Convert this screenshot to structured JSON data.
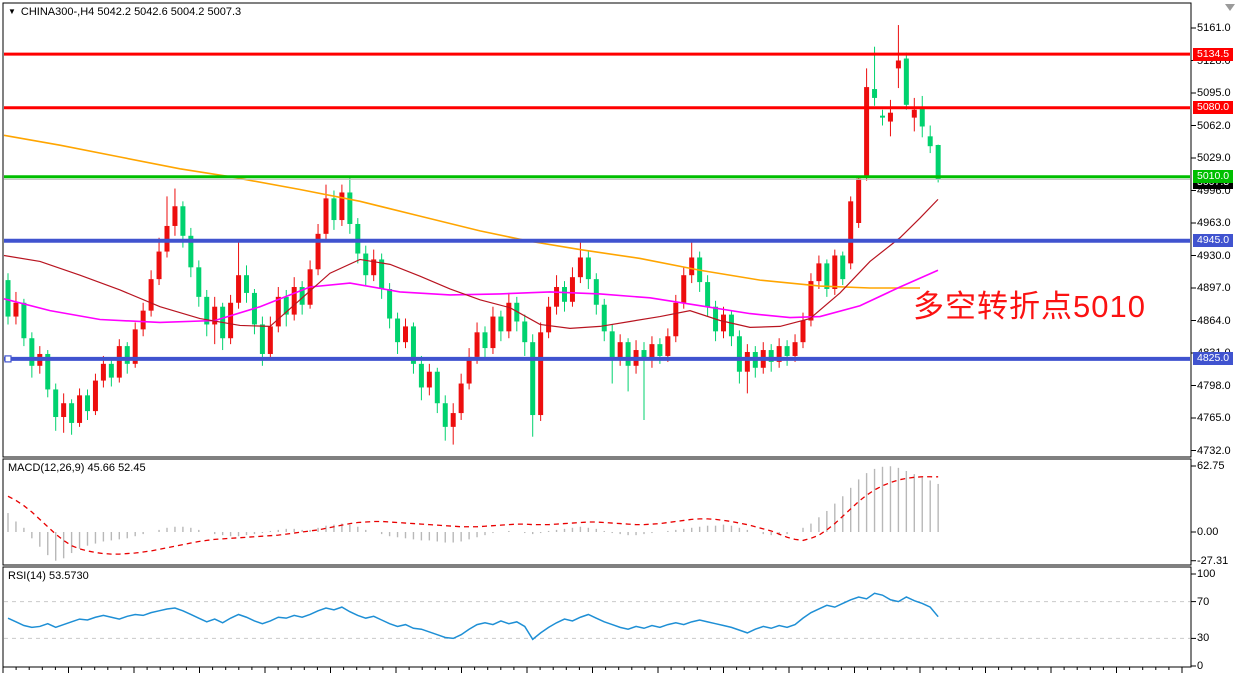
{
  "header": {
    "collapse_icon": "▼",
    "symbol": "CHINA300-,H4",
    "open": "5042.2",
    "high": "5042.6",
    "low": "5004.2",
    "close": "5007.3"
  },
  "macd_panel": {
    "label": "MACD(12,26,9)",
    "values": "45.66 52.45",
    "ticks": [
      {
        "v": 62.75,
        "label": "62.75"
      },
      {
        "v": 0,
        "label": "0.00"
      },
      {
        "v": -27.31,
        "label": "-27.31"
      }
    ]
  },
  "rsi_panel": {
    "label": "RSI(14)",
    "value": "53.5730",
    "ticks": [
      {
        "v": 100,
        "label": "100"
      },
      {
        "v": 70,
        "label": "70"
      },
      {
        "v": 30,
        "label": "30"
      },
      {
        "v": 0,
        "label": "0"
      }
    ],
    "levels": [
      70,
      30
    ]
  },
  "price_axis": {
    "ticks": [
      "5161.0",
      "5128.0",
      "5095.0",
      "5062.0",
      "5029.0",
      "4996.0",
      "4963.0",
      "4930.0",
      "4897.0",
      "4864.0",
      "4831.0",
      "4798.0",
      "4765.0",
      "4732.0"
    ]
  },
  "annotation": {
    "text": "多空转折点5010",
    "color": "#fb1212"
  },
  "hlines": [
    {
      "price": 5134.5,
      "label": "5134.5",
      "color": "#ff0000",
      "width": 3,
      "role": "resistance"
    },
    {
      "price": 5080.0,
      "label": "5080.0",
      "color": "#ff0000",
      "width": 3,
      "role": "resistance"
    },
    {
      "price": 5010.0,
      "label": "5010.0",
      "color": "#00bf00",
      "width": 3,
      "role": "pivot"
    },
    {
      "price": 5007.3,
      "label": "5007.3",
      "color": "#c0c0c0",
      "width": 1,
      "badge_color": "#000000",
      "role": "current-price"
    },
    {
      "price": 4945.0,
      "label": "4945.0",
      "color": "#4053cf",
      "width": 4,
      "role": "support"
    },
    {
      "price": 4825.0,
      "label": "4825.0",
      "color": "#4053cf",
      "width": 4,
      "role": "support",
      "handle": true
    }
  ],
  "colors": {
    "bull": "#ed0e0e",
    "bear": "#00d26e",
    "ma_slow": "#ffa500",
    "ma_mid": "#ff00ff",
    "ma_fast": "#b81420",
    "macd_histogram": "#b8b8b8",
    "macd_signal": "#e80000",
    "rsi_line": "#1e8fd5",
    "rsi_levels": "#c9c9c9",
    "background": "#ffffff",
    "frame": "#000000"
  },
  "chart_data": {
    "type": "candlestick",
    "symbol": "CHINA300-",
    "timeframe": "H4",
    "price_range_visible": [
      4732,
      5161
    ],
    "candles": [
      [
        4905,
        4912,
        4860,
        4868
      ],
      [
        4868,
        4893,
        4860,
        4882
      ],
      [
        4882,
        4886,
        4838,
        4846
      ],
      [
        4846,
        4852,
        4806,
        4818
      ],
      [
        4818,
        4838,
        4810,
        4830
      ],
      [
        4830,
        4834,
        4786,
        4794
      ],
      [
        4794,
        4800,
        4752,
        4766
      ],
      [
        4766,
        4790,
        4750,
        4780
      ],
      [
        4780,
        4784,
        4748,
        4760
      ],
      [
        4760,
        4795,
        4756,
        4788
      ],
      [
        4788,
        4794,
        4763,
        4772
      ],
      [
        4772,
        4810,
        4768,
        4803
      ],
      [
        4803,
        4828,
        4796,
        4820
      ],
      [
        4820,
        4824,
        4797,
        4806
      ],
      [
        4806,
        4845,
        4801,
        4838
      ],
      [
        4838,
        4842,
        4810,
        4820
      ],
      [
        4820,
        4862,
        4816,
        4855
      ],
      [
        4855,
        4882,
        4848,
        4874
      ],
      [
        4874,
        4915,
        4868,
        4906
      ],
      [
        4906,
        4948,
        4900,
        4934
      ],
      [
        4934,
        4990,
        4928,
        4960
      ],
      [
        4960,
        4998,
        4950,
        4980
      ],
      [
        4980,
        4985,
        4938,
        4950
      ],
      [
        4950,
        4958,
        4908,
        4918
      ],
      [
        4918,
        4925,
        4878,
        4888
      ],
      [
        4888,
        4895,
        4848,
        4860
      ],
      [
        4860,
        4888,
        4840,
        4878
      ],
      [
        4878,
        4882,
        4834,
        4846
      ],
      [
        4846,
        4890,
        4840,
        4882
      ],
      [
        4882,
        4944,
        4876,
        4910
      ],
      [
        4910,
        4920,
        4882,
        4892
      ],
      [
        4892,
        4896,
        4850,
        4860
      ],
      [
        4860,
        4868,
        4818,
        4830
      ],
      [
        4830,
        4868,
        4824,
        4858
      ],
      [
        4858,
        4898,
        4852,
        4888
      ],
      [
        4888,
        4895,
        4858,
        4870
      ],
      [
        4870,
        4908,
        4864,
        4898
      ],
      [
        4898,
        4904,
        4870,
        4880
      ],
      [
        4880,
        4925,
        4876,
        4916
      ],
      [
        4916,
        4962,
        4910,
        4952
      ],
      [
        4952,
        5002,
        4946,
        4988
      ],
      [
        4988,
        4996,
        4956,
        4966
      ],
      [
        4966,
        5002,
        4960,
        4994
      ],
      [
        4994,
        5009,
        4952,
        4962
      ],
      [
        4962,
        4968,
        4922,
        4932
      ],
      [
        4932,
        4940,
        4900,
        4910
      ],
      [
        4910,
        4936,
        4904,
        4926
      ],
      [
        4926,
        4932,
        4886,
        4896
      ],
      [
        4896,
        4902,
        4856,
        4866
      ],
      [
        4866,
        4872,
        4830,
        4842
      ],
      [
        4842,
        4866,
        4836,
        4858
      ],
      [
        4858,
        4862,
        4810,
        4820
      ],
      [
        4820,
        4828,
        4783,
        4796
      ],
      [
        4796,
        4820,
        4788,
        4812
      ],
      [
        4812,
        4816,
        4770,
        4780
      ],
      [
        4780,
        4788,
        4742,
        4756
      ],
      [
        4756,
        4780,
        4738,
        4770
      ],
      [
        4770,
        4810,
        4763,
        4800
      ],
      [
        4800,
        4836,
        4794,
        4827
      ],
      [
        4827,
        4862,
        4820,
        4852
      ],
      [
        4852,
        4858,
        4826,
        4836
      ],
      [
        4836,
        4878,
        4830,
        4868
      ],
      [
        4868,
        4874,
        4843,
        4853
      ],
      [
        4853,
        4892,
        4846,
        4882
      ],
      [
        4882,
        4888,
        4853,
        4863
      ],
      [
        4863,
        4870,
        4828,
        4842
      ],
      [
        4842,
        4850,
        4746,
        4768
      ],
      [
        4768,
        4862,
        4762,
        4852
      ],
      [
        4852,
        4888,
        4846,
        4878
      ],
      [
        4878,
        4910,
        4870,
        4898
      ],
      [
        4898,
        4904,
        4873,
        4883
      ],
      [
        4883,
        4918,
        4878,
        4908
      ],
      [
        4908,
        4944,
        4902,
        4928
      ],
      [
        4928,
        4935,
        4896,
        4906
      ],
      [
        4906,
        4912,
        4870,
        4880
      ],
      [
        4880,
        4886,
        4843,
        4853
      ],
      [
        4853,
        4860,
        4800,
        4826
      ],
      [
        4826,
        4850,
        4818,
        4842
      ],
      [
        4842,
        4846,
        4792,
        4818
      ],
      [
        4818,
        4844,
        4810,
        4834
      ],
      [
        4834,
        4842,
        4763,
        4824
      ],
      [
        4824,
        4848,
        4816,
        4840
      ],
      [
        4840,
        4846,
        4820,
        4828
      ],
      [
        4828,
        4856,
        4822,
        4848
      ],
      [
        4848,
        4890,
        4842,
        4882
      ],
      [
        4882,
        4918,
        4876,
        4910
      ],
      [
        4910,
        4944,
        4902,
        4928
      ],
      [
        4928,
        4934,
        4893,
        4903
      ],
      [
        4903,
        4910,
        4868,
        4878
      ],
      [
        4878,
        4884,
        4843,
        4853
      ],
      [
        4853,
        4878,
        4846,
        4870
      ],
      [
        4870,
        4874,
        4838,
        4848
      ],
      [
        4848,
        4854,
        4800,
        4812
      ],
      [
        4812,
        4840,
        4790,
        4832
      ],
      [
        4832,
        4838,
        4806,
        4816
      ],
      [
        4816,
        4842,
        4810,
        4834
      ],
      [
        4834,
        4840,
        4812,
        4822
      ],
      [
        4822,
        4846,
        4816,
        4838
      ],
      [
        4838,
        4844,
        4818,
        4828
      ],
      [
        4828,
        4850,
        4822,
        4842
      ],
      [
        4842,
        4872,
        4836,
        4864
      ],
      [
        4864,
        4912,
        4858,
        4904
      ],
      [
        4904,
        4930,
        4896,
        4922
      ],
      [
        4922,
        4926,
        4888,
        4896
      ],
      [
        4896,
        4936,
        4890,
        4930
      ],
      [
        4930,
        4934,
        4900,
        4906
      ],
      [
        4922,
        4990,
        4916,
        4985
      ],
      [
        4963,
        5009,
        4958,
        5008
      ],
      [
        5010,
        5120,
        5006,
        5101
      ],
      [
        5099,
        5142,
        5082,
        5090
      ],
      [
        5072,
        5078,
        5062,
        5070
      ],
      [
        5066,
        5088,
        5051,
        5075
      ],
      [
        5120,
        5164,
        5100,
        5128
      ],
      [
        5130,
        5136,
        5078,
        5083
      ],
      [
        5070,
        5090,
        5056,
        5078
      ],
      [
        5079,
        5092,
        5050,
        5061
      ],
      [
        5051,
        5062,
        5034,
        5041
      ],
      [
        5042.2,
        5042.6,
        5004.2,
        5007.3
      ]
    ],
    "moving_averages": [
      {
        "name": "ma-slow-orange",
        "color": "#ffa500",
        "points": [
          [
            4,
            5052
          ],
          [
            60,
            5042
          ],
          [
            120,
            5030
          ],
          [
            180,
            5018
          ],
          [
            230,
            5010
          ],
          [
            300,
            4997
          ],
          [
            360,
            4985
          ],
          [
            420,
            4970
          ],
          [
            480,
            4955
          ],
          [
            527,
            4945
          ],
          [
            580,
            4936
          ],
          [
            640,
            4927
          ],
          [
            700,
            4915
          ],
          [
            760,
            4905
          ],
          [
            820,
            4899
          ],
          [
            870,
            4897
          ],
          [
            920,
            4897
          ]
        ]
      },
      {
        "name": "ma-mid-magenta",
        "color": "#ff00ff",
        "points": [
          [
            4,
            4886
          ],
          [
            50,
            4874
          ],
          [
            100,
            4865
          ],
          [
            160,
            4862
          ],
          [
            215,
            4864
          ],
          [
            260,
            4878
          ],
          [
            310,
            4898
          ],
          [
            350,
            4902
          ],
          [
            400,
            4893
          ],
          [
            450,
            4890
          ],
          [
            500,
            4891
          ],
          [
            550,
            4893
          ],
          [
            600,
            4891
          ],
          [
            650,
            4887
          ],
          [
            700,
            4879
          ],
          [
            750,
            4871
          ],
          [
            790,
            4867
          ],
          [
            820,
            4868
          ],
          [
            860,
            4879
          ],
          [
            900,
            4898
          ],
          [
            938,
            4915
          ]
        ]
      },
      {
        "name": "ma-fast-crimson",
        "color": "#b81420",
        "points": [
          [
            4,
            4930
          ],
          [
            40,
            4924
          ],
          [
            80,
            4910
          ],
          [
            120,
            4895
          ],
          [
            160,
            4878
          ],
          [
            200,
            4866
          ],
          [
            240,
            4859
          ],
          [
            270,
            4858
          ],
          [
            300,
            4885
          ],
          [
            330,
            4912
          ],
          [
            360,
            4926
          ],
          [
            390,
            4921
          ],
          [
            420,
            4909
          ],
          [
            450,
            4896
          ],
          [
            480,
            4885
          ],
          [
            510,
            4877
          ],
          [
            540,
            4860
          ],
          [
            570,
            4856
          ],
          [
            600,
            4858
          ],
          [
            630,
            4863
          ],
          [
            660,
            4868
          ],
          [
            690,
            4874
          ],
          [
            720,
            4864
          ],
          [
            750,
            4857
          ],
          [
            780,
            4858
          ],
          [
            810,
            4866
          ],
          [
            840,
            4892
          ],
          [
            870,
            4924
          ],
          [
            900,
            4948
          ],
          [
            920,
            4968
          ],
          [
            938,
            4987
          ]
        ]
      }
    ],
    "macd": {
      "histogram": [
        18,
        10,
        4,
        -6,
        -14,
        -22,
        -27.3,
        -25,
        -20,
        -16,
        -13,
        -11,
        -9,
        -8,
        -7,
        -6,
        -4,
        -2,
        0,
        2,
        4,
        5,
        5,
        4,
        2,
        0,
        -2,
        -3,
        -4,
        -4,
        -3,
        -2,
        -1,
        1,
        2,
        3,
        3,
        2,
        2,
        4,
        6,
        7,
        8,
        7,
        5,
        2,
        0,
        -2,
        -4,
        -5,
        -6,
        -7,
        -8,
        -8,
        -9,
        -10,
        -10,
        -9,
        -7,
        -5,
        -3,
        -1,
        0,
        1,
        0,
        -1,
        -2,
        -1,
        1,
        2,
        3,
        4,
        5,
        4,
        3,
        1,
        -1,
        -2,
        -3,
        -3,
        -2,
        -1,
        0,
        1,
        2,
        3,
        4,
        5,
        6,
        6,
        7,
        6,
        4,
        2,
        0,
        -2,
        -3,
        -3,
        -2,
        0,
        4,
        8,
        14,
        20,
        27,
        34,
        42,
        50,
        56,
        60,
        62,
        62.5,
        61,
        58,
        55,
        52,
        49,
        45.7
      ],
      "signal": [
        34,
        30,
        25,
        19,
        12,
        5,
        -2,
        -8,
        -13,
        -16,
        -18,
        -19.5,
        -20.5,
        -21,
        -21,
        -20.5,
        -20,
        -19,
        -18,
        -16.5,
        -15,
        -13.5,
        -12,
        -10.5,
        -9,
        -8,
        -7,
        -6.5,
        -6,
        -5.5,
        -5,
        -4.5,
        -4,
        -3.5,
        -3,
        -2,
        -1,
        0,
        1,
        2,
        3.5,
        5,
        6.5,
        8,
        9,
        9.5,
        10,
        10,
        9.5,
        9,
        8.5,
        8,
        7.5,
        7,
        6.5,
        6,
        5.5,
        5,
        5,
        5,
        5.5,
        6,
        6.5,
        7,
        7.5,
        7.5,
        7,
        7,
        7,
        7.5,
        8,
        8.5,
        9,
        9.5,
        9.5,
        9,
        8.5,
        8,
        7.5,
        7,
        7,
        7.5,
        8,
        9,
        10,
        11,
        12,
        12.5,
        12.5,
        12,
        11,
        10,
        8.5,
        7,
        5,
        3,
        1,
        -2,
        -5,
        -7,
        -8,
        -6,
        -3,
        2,
        8,
        15,
        22,
        29,
        35,
        40,
        44,
        47,
        49.5,
        51,
        52,
        52.5,
        52.5,
        52.45
      ]
    },
    "rsi": [
      52,
      48,
      44,
      42,
      43,
      46,
      42,
      45,
      48,
      51,
      50,
      53,
      55,
      53,
      51,
      54,
      56,
      55,
      58,
      60,
      62,
      63,
      60,
      56,
      52,
      48,
      51,
      47,
      52,
      56,
      53,
      49,
      46,
      49,
      53,
      52,
      55,
      53,
      56,
      60,
      63,
      61,
      64,
      59,
      55,
      52,
      54,
      50,
      46,
      43,
      45,
      41,
      40,
      37,
      34,
      31,
      30,
      34,
      40,
      45,
      47,
      45,
      49,
      46,
      48,
      43,
      29,
      36,
      42,
      47,
      51,
      49,
      53,
      56,
      52,
      48,
      45,
      42,
      40,
      43,
      41,
      44,
      42,
      45,
      47,
      45,
      48,
      50,
      48,
      46,
      44,
      42,
      39,
      36,
      40,
      43,
      41,
      44,
      42,
      45,
      52,
      58,
      62,
      66,
      64,
      68,
      72,
      75,
      73,
      79,
      77,
      72,
      70,
      75,
      71,
      68,
      64,
      53.6
    ]
  }
}
